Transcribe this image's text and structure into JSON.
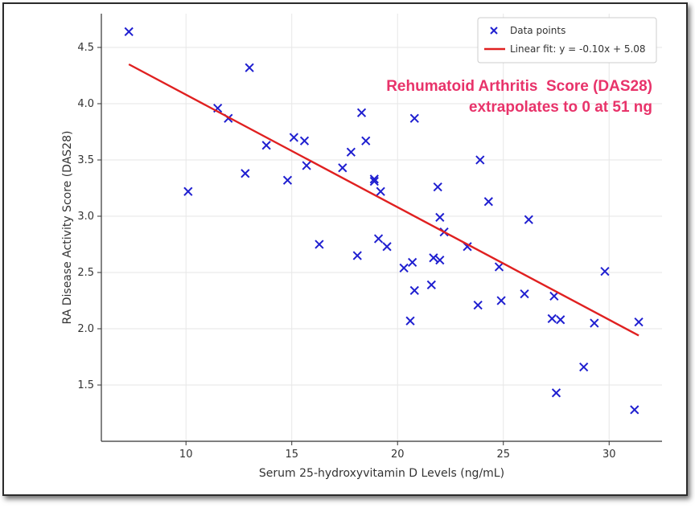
{
  "chart_data": {
    "type": "scatter",
    "title": "",
    "xlabel": "Serum 25-hydroxyvitamin D Levels (ng/mL)",
    "ylabel": "RA Disease Activity Score (DAS28)",
    "xlim": [
      6,
      32.5
    ],
    "ylim": [
      1.0,
      4.8
    ],
    "xticks": [
      10,
      15,
      20,
      25,
      30
    ],
    "yticks": [
      1.5,
      2.0,
      2.5,
      3.0,
      3.5,
      4.0,
      4.5
    ],
    "ytick_labels": [
      "1.5",
      "2.0",
      "2.5",
      "3.0",
      "3.5",
      "4.0",
      "4.5"
    ],
    "grid": true,
    "legend_position": "top-right",
    "series": [
      {
        "name": "Data points",
        "marker": "x",
        "color": "#1f1fd0",
        "points": [
          [
            7.3,
            4.64
          ],
          [
            10.1,
            3.22
          ],
          [
            11.5,
            3.96
          ],
          [
            12.0,
            3.87
          ],
          [
            12.8,
            3.38
          ],
          [
            13.0,
            4.32
          ],
          [
            13.8,
            3.63
          ],
          [
            14.8,
            3.32
          ],
          [
            15.1,
            3.7
          ],
          [
            15.6,
            3.67
          ],
          [
            15.7,
            3.45
          ],
          [
            16.3,
            2.75
          ],
          [
            17.4,
            3.43
          ],
          [
            17.8,
            3.57
          ],
          [
            18.1,
            2.65
          ],
          [
            18.3,
            3.92
          ],
          [
            18.5,
            3.67
          ],
          [
            18.9,
            3.33
          ],
          [
            18.9,
            3.31
          ],
          [
            19.1,
            2.8
          ],
          [
            19.2,
            3.22
          ],
          [
            19.5,
            2.73
          ],
          [
            20.3,
            2.54
          ],
          [
            20.6,
            2.07
          ],
          [
            20.7,
            2.59
          ],
          [
            20.8,
            3.87
          ],
          [
            20.8,
            2.34
          ],
          [
            21.6,
            2.39
          ],
          [
            21.7,
            2.63
          ],
          [
            21.9,
            3.26
          ],
          [
            22.0,
            2.99
          ],
          [
            22.0,
            2.61
          ],
          [
            22.2,
            2.86
          ],
          [
            23.3,
            2.73
          ],
          [
            23.8,
            2.21
          ],
          [
            23.9,
            3.5
          ],
          [
            24.3,
            3.13
          ],
          [
            24.8,
            2.55
          ],
          [
            24.9,
            2.25
          ],
          [
            26.0,
            2.31
          ],
          [
            26.2,
            2.97
          ],
          [
            27.3,
            2.09
          ],
          [
            27.4,
            2.29
          ],
          [
            27.5,
            1.43
          ],
          [
            27.7,
            2.08
          ],
          [
            28.8,
            1.66
          ],
          [
            29.3,
            2.05
          ],
          [
            29.8,
            2.51
          ],
          [
            31.2,
            1.28
          ],
          [
            31.4,
            2.06
          ]
        ]
      },
      {
        "name": "Linear fit: y = -0.10x + 5.08",
        "type": "line",
        "color": "#e02020",
        "slope": -0.1,
        "intercept": 5.08,
        "x_range": [
          7.3,
          31.4
        ]
      }
    ],
    "annotation": {
      "lines": [
        "Rehumatoid Arthritis  Score (DAS28)",
        "extrapolates to 0 at 51 ng"
      ],
      "color": "#e8336a"
    }
  }
}
